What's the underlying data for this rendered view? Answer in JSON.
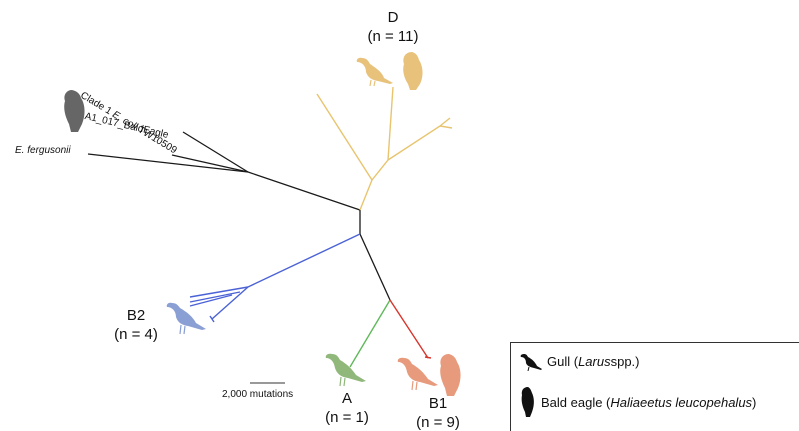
{
  "clades": {
    "D": {
      "name": "D",
      "n": "(n = 11)",
      "color": "#e8c46e"
    },
    "B2": {
      "name": "B2",
      "n": "(n = 4)",
      "color": "#4b62d6"
    },
    "A": {
      "name": "A",
      "n": "(n = 1)",
      "color": "#5fb95a"
    },
    "B1": {
      "name": "B1",
      "n": "(n = 9)",
      "color": "#d8342c"
    }
  },
  "tips": {
    "clade1": {
      "prefix": "Clade 1 ",
      "italic": "E. coli",
      "suffix": " TW10509"
    },
    "a1": "A1_017_BaldEagle",
    "fergusonii": "E. fergusonii"
  },
  "scale_bar": {
    "label": "2,000 mutations"
  },
  "legend": {
    "gull": {
      "prefix": "Gull (",
      "italic": "Larus",
      "suffix": " spp.)"
    },
    "eagle": {
      "prefix": "Bald eagle (",
      "italic": "Haliaeetus leucopehalus",
      "suffix": ")"
    }
  },
  "colors": {
    "outgroup_branch": "#1a1a1a",
    "clade_D": "#e8c46e",
    "clade_B2": "#4b62d6",
    "clade_A": "#5fb95a",
    "clade_B1": "#d8342c",
    "silhouette_D": "#e8c27a",
    "silhouette_B2": "#8a9fd4",
    "silhouette_A": "#8fb87a",
    "silhouette_B1": "#e79a7c",
    "silhouette_outgroup": "#666666"
  }
}
